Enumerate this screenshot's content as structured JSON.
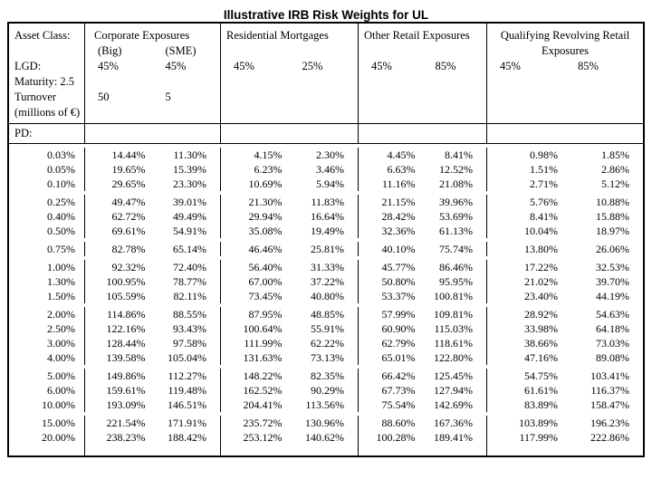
{
  "title": "Illustrative IRB Risk Weights for UL",
  "table": {
    "asset_class_label": "Asset Class:",
    "lgd_label": "LGD:",
    "maturity_label": "Maturity: 2.5",
    "turnover_label": "Turnover",
    "turnover_sub_label": "(millions of €)",
    "pd_label": "PD:",
    "columns": [
      {
        "name": "Corporate Exposures",
        "sub_labels": [
          "(Big)",
          "(SME)"
        ],
        "lgd": [
          "45%",
          "45%"
        ],
        "turnover": [
          "50",
          "5"
        ]
      },
      {
        "name": "Residential Mortgages",
        "lgd": [
          "45%",
          "25%"
        ]
      },
      {
        "name": "Other Retail Exposures",
        "lgd": [
          "45%",
          "85%"
        ]
      },
      {
        "name_line1": "Qualifying Revolving Retail",
        "name_line2": "Exposures",
        "lgd": [
          "45%",
          "85%"
        ]
      }
    ],
    "row_groups": [
      {
        "rows": [
          [
            "0.03%",
            "14.44%",
            "11.30%",
            "4.15%",
            "2.30%",
            "4.45%",
            "8.41%",
            "0.98%",
            "1.85%"
          ],
          [
            "0.05%",
            "19.65%",
            "15.39%",
            "6.23%",
            "3.46%",
            "6.63%",
            "12.52%",
            "1.51%",
            "2.86%"
          ],
          [
            "0.10%",
            "29.65%",
            "23.30%",
            "10.69%",
            "5.94%",
            "11.16%",
            "21.08%",
            "2.71%",
            "5.12%"
          ]
        ]
      },
      {
        "rows": [
          [
            "0.25%",
            "49.47%",
            "39.01%",
            "21.30%",
            "11.83%",
            "21.15%",
            "39.96%",
            "5.76%",
            "10.88%"
          ],
          [
            "0.40%",
            "62.72%",
            "49.49%",
            "29.94%",
            "16.64%",
            "28.42%",
            "53.69%",
            "8.41%",
            "15.88%"
          ],
          [
            "0.50%",
            "69.61%",
            "54.91%",
            "35.08%",
            "19.49%",
            "32.36%",
            "61.13%",
            "10.04%",
            "18.97%"
          ]
        ]
      },
      {
        "rows": [
          [
            "0.75%",
            "82.78%",
            "65.14%",
            "46.46%",
            "25.81%",
            "40.10%",
            "75.74%",
            "13.80%",
            "26.06%"
          ]
        ]
      },
      {
        "rows": [
          [
            "1.00%",
            "92.32%",
            "72.40%",
            "56.40%",
            "31.33%",
            "45.77%",
            "86.46%",
            "17.22%",
            "32.53%"
          ],
          [
            "1.30%",
            "100.95%",
            "78.77%",
            "67.00%",
            "37.22%",
            "50.80%",
            "95.95%",
            "21.02%",
            "39.70%"
          ],
          [
            "1.50%",
            "105.59%",
            "82.11%",
            "73.45%",
            "40.80%",
            "53.37%",
            "100.81%",
            "23.40%",
            "44.19%"
          ]
        ]
      },
      {
        "rows": [
          [
            "2.00%",
            "114.86%",
            "88.55%",
            "87.95%",
            "48.85%",
            "57.99%",
            "109.81%",
            "28.92%",
            "54.63%"
          ],
          [
            "2.50%",
            "122.16%",
            "93.43%",
            "100.64%",
            "55.91%",
            "60.90%",
            "115.03%",
            "33.98%",
            "64.18%"
          ],
          [
            "3.00%",
            "128.44%",
            "97.58%",
            "111.99%",
            "62.22%",
            "62.79%",
            "118.61%",
            "38.66%",
            "73.03%"
          ],
          [
            "4.00%",
            "139.58%",
            "105.04%",
            "131.63%",
            "73.13%",
            "65.01%",
            "122.80%",
            "47.16%",
            "89.08%"
          ]
        ]
      },
      {
        "rows": [
          [
            "5.00%",
            "149.86%",
            "112.27%",
            "148.22%",
            "82.35%",
            "66.42%",
            "125.45%",
            "54.75%",
            "103.41%"
          ],
          [
            "6.00%",
            "159.61%",
            "119.48%",
            "162.52%",
            "90.29%",
            "67.73%",
            "127.94%",
            "61.61%",
            "116.37%"
          ],
          [
            "10.00%",
            "193.09%",
            "146.51%",
            "204.41%",
            "113.56%",
            "75.54%",
            "142.69%",
            "83.89%",
            "158.47%"
          ]
        ]
      },
      {
        "rows": [
          [
            "15.00%",
            "221.54%",
            "171.91%",
            "235.72%",
            "130.96%",
            "88.60%",
            "167.36%",
            "103.89%",
            "196.23%"
          ],
          [
            "20.00%",
            "238.23%",
            "188.42%",
            "253.12%",
            "140.62%",
            "100.28%",
            "189.41%",
            "117.99%",
            "222.86%"
          ]
        ]
      }
    ]
  },
  "colors": {
    "text": "#000000",
    "border": "#000000",
    "background": "#ffffff"
  }
}
